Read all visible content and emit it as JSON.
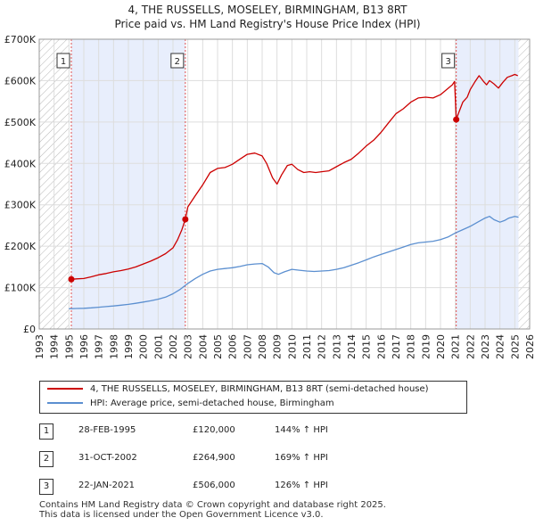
{
  "chart_data": {
    "type": "line",
    "title": "4, THE RUSSELLS, MOSELEY, BIRMINGHAM, B13 8RT",
    "subtitle": "Price paid vs. HM Land Registry's House Price Index (HPI)",
    "xlabel": "",
    "ylabel": "",
    "xlim": [
      1993,
      2026
    ],
    "ylim": [
      0,
      700000
    ],
    "x_ticks": [
      1993,
      1994,
      1995,
      1996,
      1997,
      1998,
      1999,
      2000,
      2001,
      2002,
      2003,
      2004,
      2005,
      2006,
      2007,
      2008,
      2009,
      2010,
      2011,
      2012,
      2013,
      2014,
      2015,
      2016,
      2017,
      2018,
      2019,
      2020,
      2021,
      2022,
      2023,
      2024,
      2025,
      2026
    ],
    "y_ticks": [
      0,
      100000,
      200000,
      300000,
      400000,
      500000,
      600000,
      700000
    ],
    "y_tick_labels": [
      "£0",
      "£100K",
      "£200K",
      "£300K",
      "£400K",
      "£500K",
      "£600K",
      "£700K"
    ],
    "data_range": [
      1995.0,
      2025.25
    ],
    "colors": {
      "property": "#cc0000",
      "hpi": "#5b8fd0",
      "shade": "#e8eefc",
      "hatch": "#b8b8b8",
      "vline": "#e05050"
    },
    "series": [
      {
        "name": "4, THE RUSSELLS, MOSELEY, BIRMINGHAM, B13 8RT (semi-detached house)",
        "color": "#cc0000",
        "x": [
          1995.16,
          1995.5,
          1996,
          1996.5,
          1997,
          1997.5,
          1998,
          1998.5,
          1999,
          1999.5,
          2000,
          2000.5,
          2001,
          2001.5,
          2002,
          2002.3,
          2002.6,
          2002.83,
          2003,
          2003.5,
          2004,
          2004.5,
          2005,
          2005.5,
          2006,
          2006.5,
          2007,
          2007.5,
          2008,
          2008.3,
          2008.7,
          2009,
          2009.3,
          2009.7,
          2010,
          2010.4,
          2010.8,
          2011.2,
          2011.6,
          2012,
          2012.5,
          2013,
          2013.5,
          2014,
          2014.5,
          2015,
          2015.5,
          2016,
          2016.5,
          2017,
          2017.5,
          2018,
          2018.5,
          2019,
          2019.5,
          2020,
          2020.4,
          2020.8,
          2020.95,
          2021.06,
          2021.2,
          2021.5,
          2021.8,
          2022,
          2022.3,
          2022.6,
          2022.9,
          2023.1,
          2023.3,
          2023.6,
          2023.9,
          2024.2,
          2024.5,
          2024.8,
          2025.0,
          2025.2
        ],
        "y": [
          120000,
          121000,
          122000,
          126000,
          131000,
          134000,
          138000,
          141000,
          145000,
          150000,
          157000,
          164000,
          172000,
          182000,
          196000,
          215000,
          240000,
          264900,
          295000,
          322000,
          348000,
          378000,
          388000,
          390000,
          398000,
          410000,
          422000,
          425000,
          418000,
          400000,
          365000,
          350000,
          372000,
          395000,
          398000,
          385000,
          378000,
          380000,
          378000,
          380000,
          382000,
          392000,
          402000,
          410000,
          425000,
          442000,
          456000,
          475000,
          498000,
          520000,
          532000,
          548000,
          558000,
          560000,
          558000,
          566000,
          578000,
          590000,
          598000,
          506000,
          520000,
          548000,
          560000,
          578000,
          596000,
          612000,
          598000,
          590000,
          600000,
          592000,
          582000,
          596000,
          608000,
          612000,
          615000,
          612000
        ]
      },
      {
        "name": "HPI: Average price, semi-detached house, Birmingham",
        "color": "#5b8fd0",
        "x": [
          1995,
          1995.5,
          1996,
          1996.5,
          1997,
          1997.5,
          1998,
          1998.5,
          1999,
          1999.5,
          2000,
          2000.5,
          2001,
          2001.5,
          2002,
          2002.5,
          2003,
          2003.5,
          2004,
          2004.5,
          2005,
          2005.5,
          2006,
          2006.5,
          2007,
          2007.5,
          2008,
          2008.4,
          2008.8,
          2009.1,
          2009.5,
          2010,
          2010.5,
          2011,
          2011.5,
          2012,
          2012.5,
          2013,
          2013.5,
          2014,
          2014.5,
          2015,
          2015.5,
          2016,
          2016.5,
          2017,
          2017.5,
          2018,
          2018.5,
          2019,
          2019.5,
          2020,
          2020.5,
          2021,
          2021.5,
          2022,
          2022.5,
          2023,
          2023.3,
          2023.6,
          2024,
          2024.3,
          2024.6,
          2025,
          2025.25
        ],
        "y": [
          49000,
          49500,
          50000,
          51000,
          52500,
          54000,
          55500,
          57500,
          59500,
          62000,
          65000,
          68000,
          72000,
          77000,
          85000,
          96000,
          110000,
          122000,
          132000,
          140000,
          144000,
          146000,
          148000,
          151000,
          155000,
          157000,
          158000,
          150000,
          136000,
          132000,
          138000,
          144000,
          142000,
          140000,
          139000,
          140000,
          141000,
          144000,
          148000,
          154000,
          160000,
          167000,
          174000,
          180000,
          186000,
          192000,
          198000,
          204000,
          208000,
          210000,
          212000,
          216000,
          222000,
          232000,
          240000,
          248000,
          258000,
          268000,
          272000,
          264000,
          258000,
          262000,
          268000,
          272000,
          270000
        ]
      }
    ],
    "transactions": [
      {
        "id": "1",
        "x": 1995.16,
        "y": 120000,
        "date": "28-FEB-1995",
        "price": "£120,000",
        "hpi": "144% ↑ HPI"
      },
      {
        "id": "2",
        "x": 2002.83,
        "y": 264900,
        "date": "31-OCT-2002",
        "price": "£264,900",
        "hpi": "169% ↑ HPI"
      },
      {
        "id": "3",
        "x": 2021.06,
        "y": 506000,
        "date": "22-JAN-2021",
        "price": "£506,000",
        "hpi": "126% ↑ HPI"
      }
    ]
  },
  "legend": {
    "property_label": "4, THE RUSSELLS, MOSELEY, BIRMINGHAM, B13 8RT (semi-detached house)",
    "hpi_label": "HPI: Average price, semi-detached house, Birmingham"
  },
  "footer": {
    "line1": "Contains HM Land Registry data © Crown copyright and database right 2025.",
    "line2": "This data is licensed under the Open Government Licence v3.0."
  }
}
